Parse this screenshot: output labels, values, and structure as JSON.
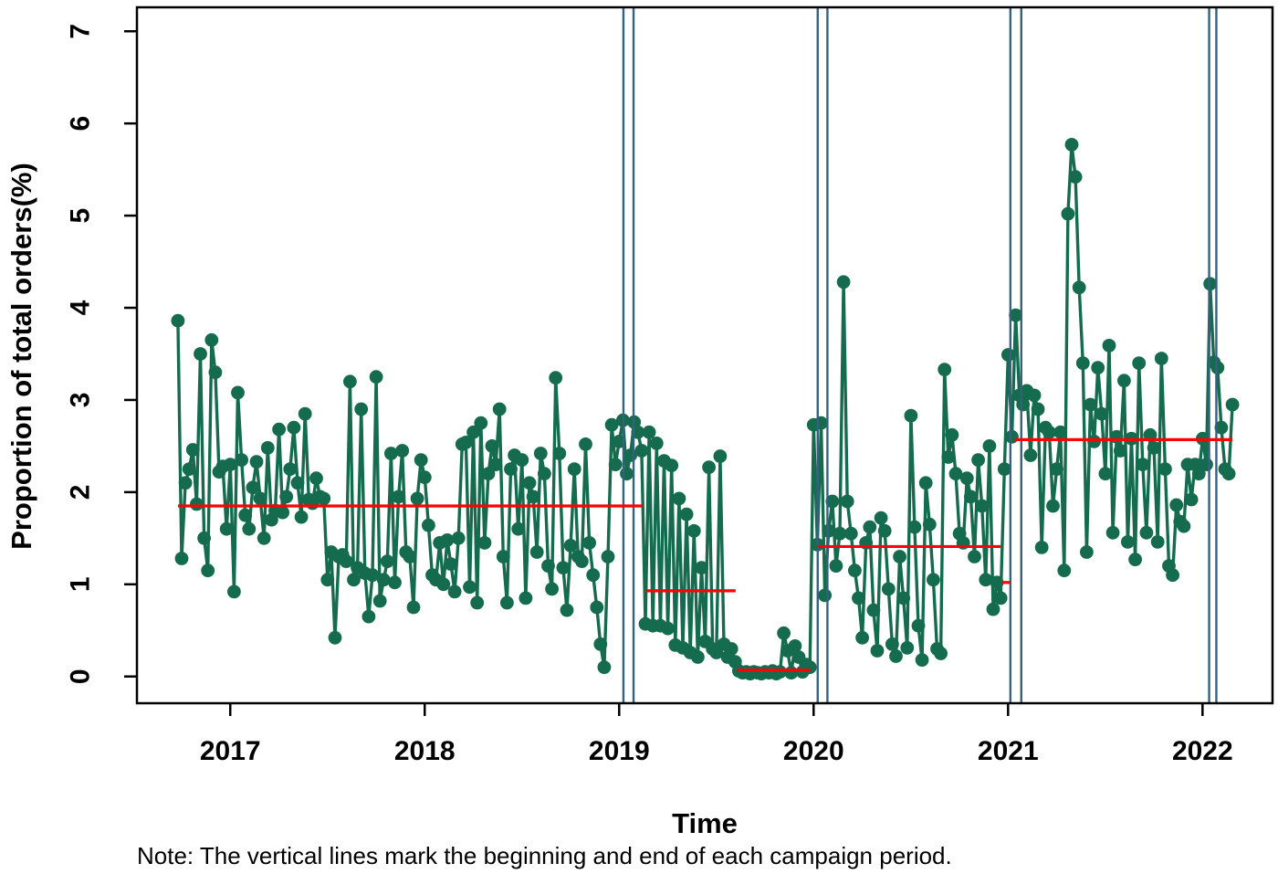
{
  "chart_data": {
    "type": "line",
    "title": "",
    "xlabel": "Time",
    "ylabel": "Proportion of total orders(%)",
    "note": "Note: The vertical lines mark the beginning and end of each campaign period.",
    "x_tick_labels": [
      "2017",
      "2018",
      "2019",
      "2020",
      "2021",
      "2022"
    ],
    "x_tick_values": [
      2017,
      2018,
      2019,
      2020,
      2021,
      2022
    ],
    "y_tick_labels": [
      "0",
      "1",
      "2",
      "3",
      "4",
      "5",
      "6",
      "7"
    ],
    "y_tick_values": [
      0,
      1,
      2,
      3,
      4,
      5,
      6,
      7
    ],
    "xlim": [
      2016.52,
      2022.36
    ],
    "ylim": [
      -0.29,
      7.26
    ],
    "grid": false,
    "legend": "none",
    "series": {
      "name": "weekly proportion of total orders",
      "x_start": 2016.731,
      "x_step": 0.019231,
      "values": [
        3.86,
        1.28,
        2.1,
        2.25,
        2.46,
        1.87,
        3.5,
        1.5,
        1.15,
        3.65,
        3.3,
        2.22,
        2.28,
        1.6,
        2.3,
        0.92,
        3.08,
        2.35,
        1.75,
        1.6,
        2.05,
        2.33,
        1.93,
        1.5,
        2.48,
        1.7,
        1.8,
        2.68,
        1.78,
        1.95,
        2.25,
        2.7,
        2.1,
        1.73,
        2.85,
        1.92,
        1.88,
        2.15,
        1.95,
        1.93,
        1.05,
        1.35,
        0.42,
        1.3,
        1.32,
        1.25,
        3.2,
        1.05,
        1.18,
        2.9,
        1.12,
        0.65,
        1.1,
        3.25,
        0.82,
        1.05,
        1.25,
        2.42,
        1.02,
        1.95,
        2.45,
        1.35,
        1.3,
        0.75,
        1.93,
        2.35,
        2.16,
        1.64,
        1.1,
        1.05,
        1.45,
        1.0,
        1.48,
        1.22,
        0.92,
        1.5,
        2.52,
        2.54,
        0.97,
        2.65,
        0.8,
        2.75,
        1.45,
        2.2,
        2.5,
        2.3,
        2.9,
        1.3,
        0.8,
        2.25,
        2.4,
        1.6,
        2.35,
        0.85,
        2.1,
        1.95,
        1.35,
        2.42,
        2.2,
        1.2,
        0.95,
        3.24,
        2.42,
        1.18,
        0.72,
        1.42,
        2.25,
        1.3,
        1.25,
        2.52,
        1.45,
        1.1,
        0.75,
        0.35,
        0.1,
        1.3,
        2.73,
        2.3,
        2.55,
        2.78,
        2.2,
        2.4,
        2.76,
        2.65,
        2.45,
        0.57,
        2.65,
        0.55,
        2.53,
        0.55,
        2.34,
        0.52,
        2.29,
        0.34,
        1.93,
        0.31,
        1.76,
        0.26,
        1.58,
        0.21,
        1.18,
        0.38,
        2.27,
        0.3,
        0.26,
        2.39,
        0.35,
        0.21,
        0.3,
        0.16,
        0.06,
        0.04,
        0.05,
        0.03,
        0.05,
        0.04,
        0.03,
        0.05,
        0.04,
        0.06,
        0.03,
        0.05,
        0.47,
        0.28,
        0.04,
        0.33,
        0.21,
        0.05,
        0.13,
        0.1,
        2.73,
        1.43,
        2.75,
        0.88,
        1.58,
        1.9,
        1.2,
        1.55,
        4.28,
        1.9,
        1.55,
        1.15,
        0.85,
        0.42,
        1.45,
        1.62,
        0.72,
        0.28,
        1.72,
        1.58,
        0.95,
        0.35,
        0.22,
        1.3,
        0.85,
        0.31,
        2.83,
        1.62,
        0.55,
        0.18,
        2.1,
        1.65,
        1.05,
        0.3,
        0.25,
        3.33,
        2.38,
        2.62,
        2.2,
        1.55,
        1.45,
        2.15,
        1.95,
        1.3,
        2.35,
        1.85,
        1.05,
        2.5,
        0.73,
        1.02,
        0.85,
        2.25,
        3.49,
        2.6,
        3.92,
        3.05,
        2.95,
        3.1,
        2.4,
        3.05,
        2.9,
        1.4,
        2.7,
        2.65,
        1.85,
        2.25,
        2.65,
        1.15,
        5.02,
        5.77,
        5.42,
        4.22,
        3.4,
        1.35,
        2.95,
        2.55,
        3.35,
        2.85,
        2.2,
        3.59,
        1.56,
        2.6,
        2.45,
        3.21,
        1.46,
        2.58,
        1.27,
        3.4,
        2.3,
        1.56,
        2.62,
        2.48,
        1.46,
        3.45,
        2.25,
        1.2,
        1.1,
        1.86,
        1.68,
        1.63,
        2.3,
        1.92,
        2.3,
        2.2,
        2.58,
        2.3,
        4.26,
        3.41,
        3.35,
        2.7,
        2.25,
        2.2,
        2.95
      ]
    },
    "mean_segments": [
      {
        "x_start": 2016.731,
        "x_end": 2019.117,
        "value": 1.85
      },
      {
        "x_start": 2019.136,
        "x_end": 2019.599,
        "value": 0.93
      },
      {
        "x_start": 2019.608,
        "x_end": 2019.985,
        "value": 0.07
      },
      {
        "x_start": 2020.019,
        "x_end": 2020.962,
        "value": 1.41
      },
      {
        "x_start": 2020.971,
        "x_end": 2021.01,
        "value": 1.02
      },
      {
        "x_start": 2021.031,
        "x_end": 2022.154,
        "value": 2.57
      }
    ],
    "campaign_lines": [
      2019.022,
      2019.074,
      2020.021,
      2020.071,
      2021.012,
      2021.068,
      2022.034,
      2022.071
    ],
    "colors": {
      "series": "#156b4e",
      "mean_line": "#ff0000",
      "campaign_line": "#35617c",
      "axis": "#000000",
      "background": "#ffffff"
    }
  }
}
